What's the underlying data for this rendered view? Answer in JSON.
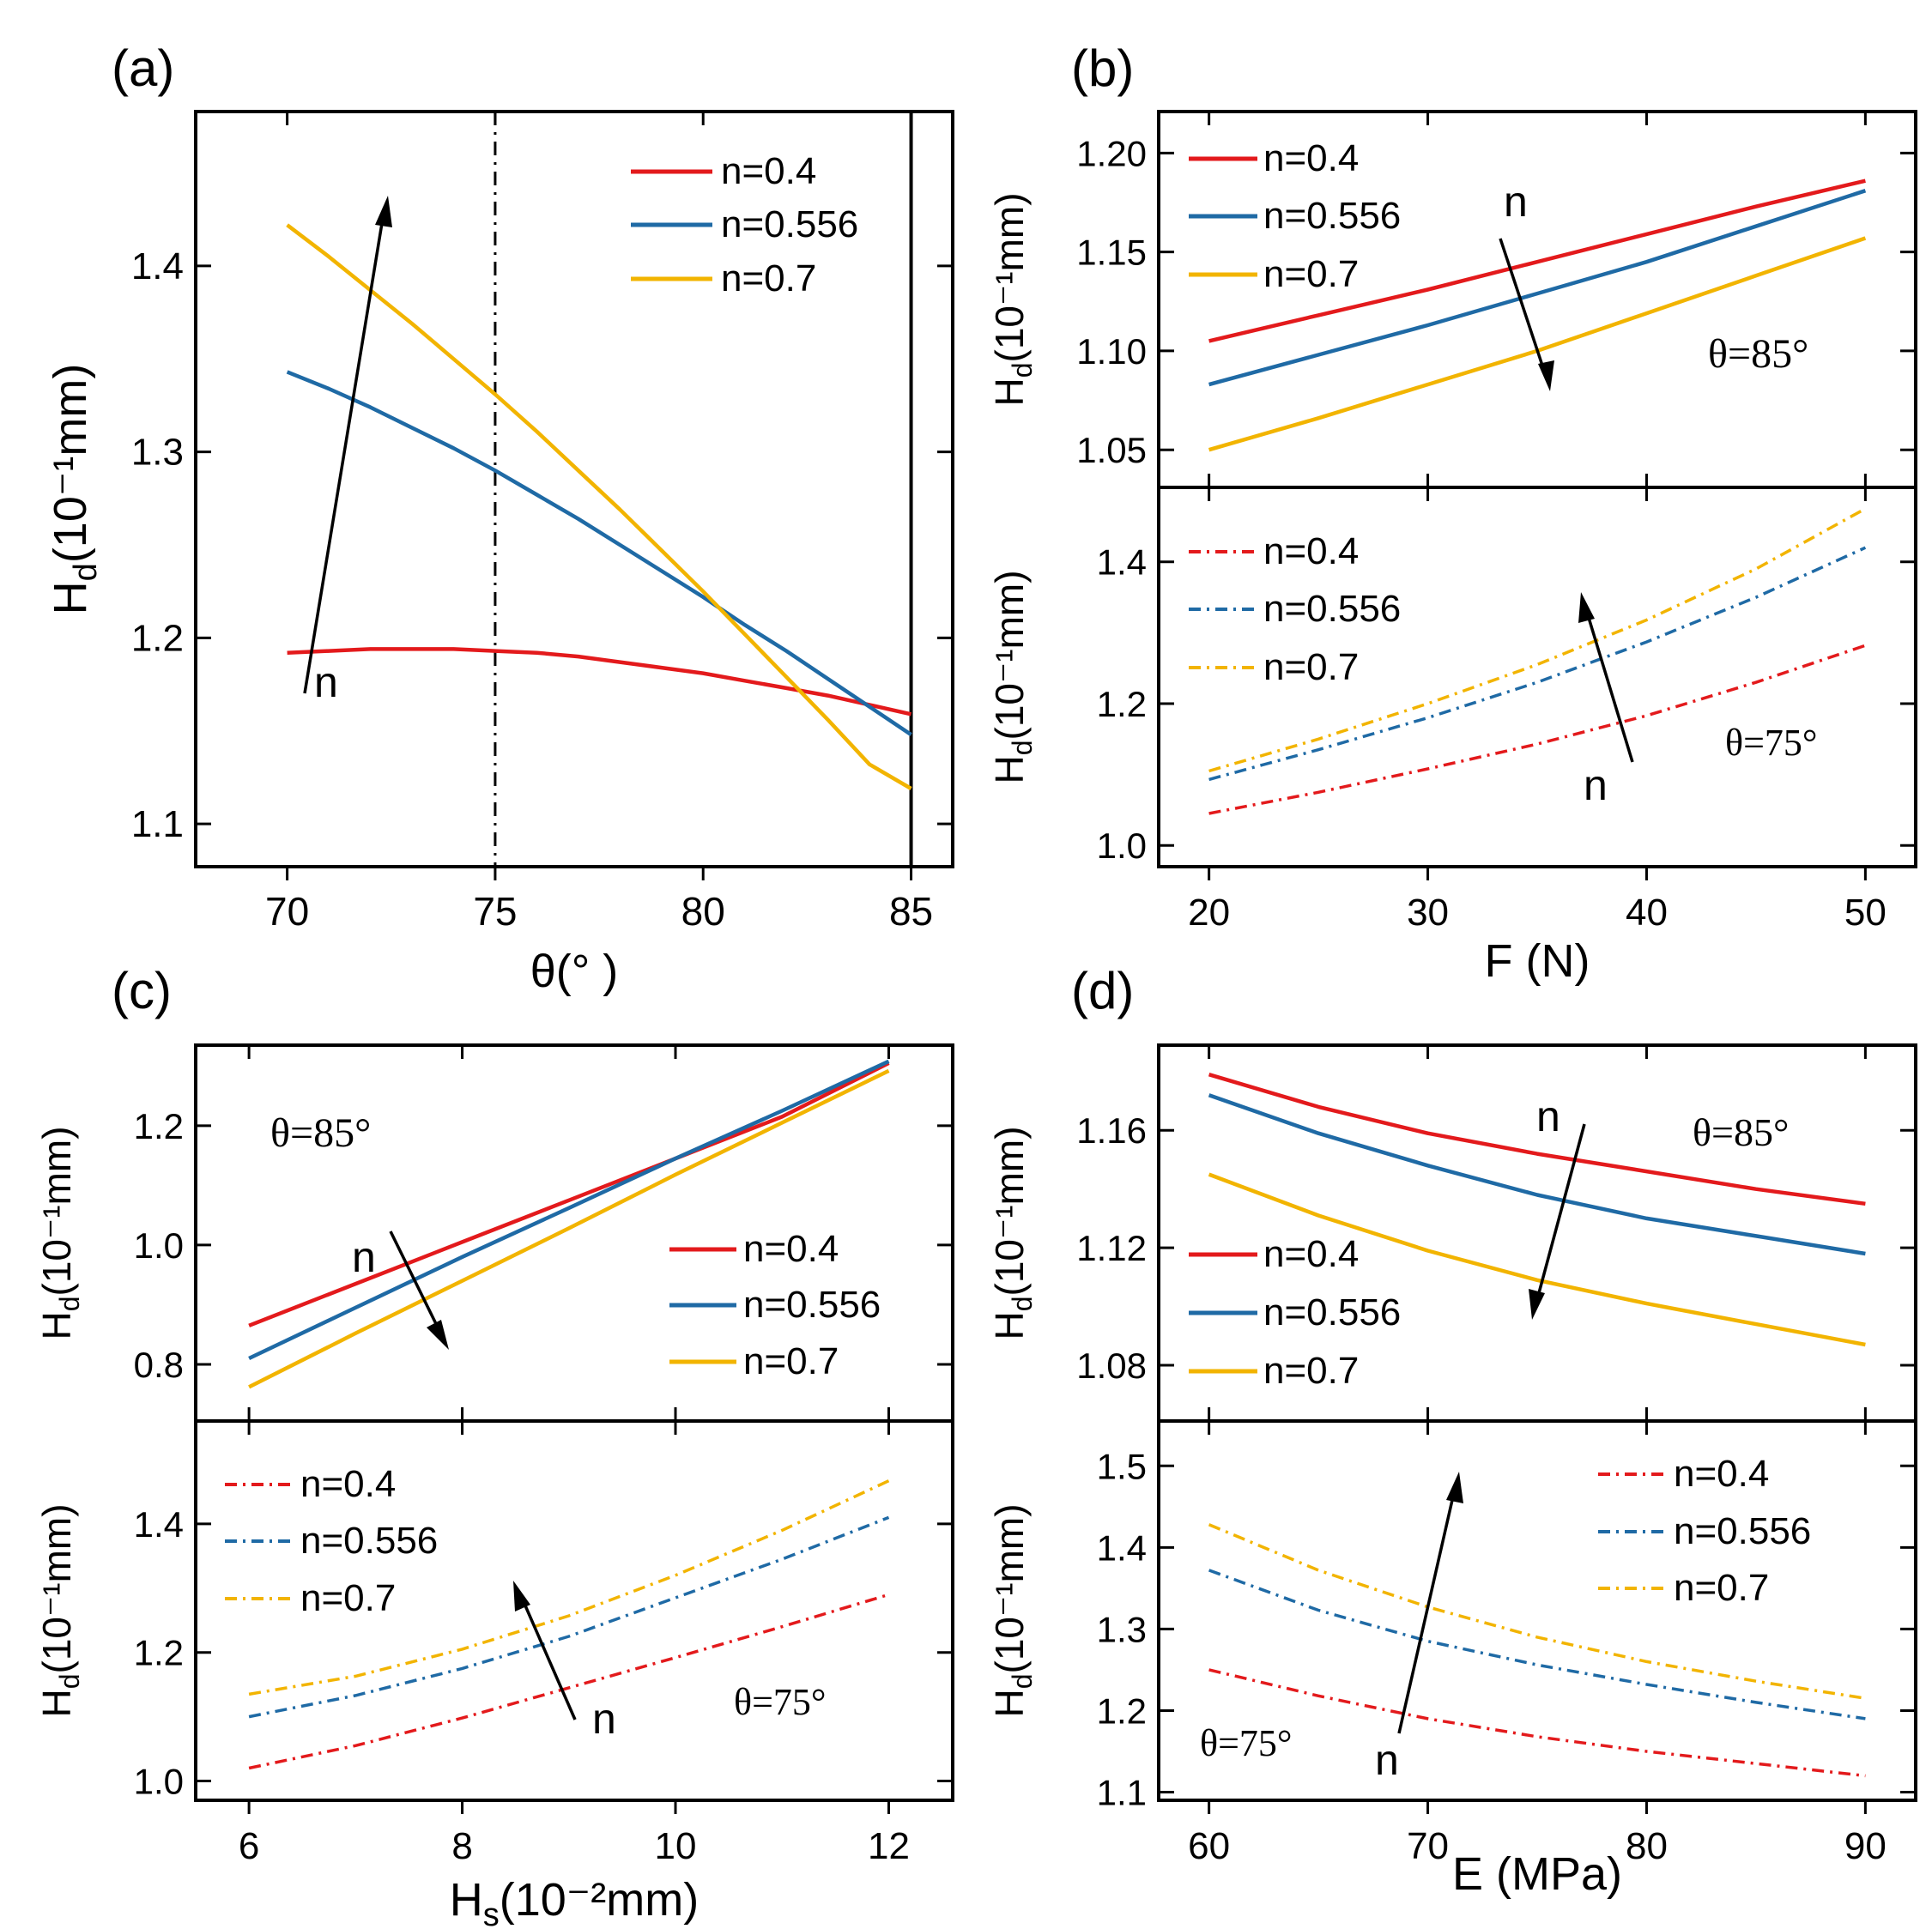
{
  "chart_data": [
    {
      "id": "a",
      "type": "line",
      "panel_label": "(a)",
      "xlabel": "θ(° )",
      "ylabel_main": "H",
      "ylabel_sub": "d",
      "ylabel_rest": "(10⁻¹mm)",
      "xlim": [
        67.8,
        86
      ],
      "ylim": [
        1.077,
        1.483
      ],
      "xticks": [
        70,
        75,
        80,
        85
      ],
      "xticklabels": [
        "70",
        "75",
        "80",
        "85"
      ],
      "yticks": [
        1.1,
        1.2,
        1.3,
        1.4
      ],
      "yticklabels": [
        "1.1",
        "1.2",
        "1.3",
        "1.4"
      ],
      "vlines": [
        {
          "x": 75,
          "style": "dashdot",
          "label": ""
        },
        {
          "x": 85,
          "style": "solid",
          "label": ""
        }
      ],
      "legend_position": "top-right",
      "annotations": [
        {
          "text": "n",
          "position": "arrow up"
        }
      ],
      "series": [
        {
          "name": "n=0.4",
          "color": "#e31a1c",
          "style": "solid",
          "x": [
            70,
            71,
            72,
            73,
            74,
            75,
            76,
            77,
            78,
            79,
            80,
            81,
            82,
            83,
            84,
            85
          ],
          "y": [
            1.192,
            1.193,
            1.194,
            1.194,
            1.194,
            1.193,
            1.192,
            1.19,
            1.187,
            1.184,
            1.181,
            1.177,
            1.173,
            1.169,
            1.164,
            1.159
          ]
        },
        {
          "name": "n=0.556",
          "color": "#1f6aa5",
          "style": "solid",
          "x": [
            70,
            71,
            72,
            73,
            74,
            75,
            76,
            77,
            78,
            79,
            80,
            81,
            82,
            83,
            84,
            85
          ],
          "y": [
            1.343,
            1.334,
            1.324,
            1.313,
            1.302,
            1.29,
            1.277,
            1.264,
            1.25,
            1.236,
            1.222,
            1.207,
            1.193,
            1.178,
            1.163,
            1.148
          ]
        },
        {
          "name": "n=0.7",
          "color": "#f2b400",
          "style": "solid",
          "x": [
            70,
            71,
            72,
            73,
            74,
            75,
            76,
            77,
            78,
            79,
            80,
            81,
            82,
            83,
            84,
            85
          ],
          "y": [
            1.422,
            1.405,
            1.387,
            1.369,
            1.35,
            1.331,
            1.311,
            1.29,
            1.269,
            1.247,
            1.225,
            1.202,
            1.179,
            1.156,
            1.132,
            1.119
          ]
        }
      ]
    },
    {
      "id": "b_top",
      "type": "line",
      "panel_label": "(b)",
      "ylabel_main": "H",
      "ylabel_sub": "d",
      "ylabel_rest": "(10⁻¹mm)",
      "xlim": [
        17.7,
        52.3
      ],
      "ylim": [
        1.031,
        1.221
      ],
      "yticks": [
        1.05,
        1.1,
        1.15,
        1.2
      ],
      "yticklabels": [
        "1.05",
        "1.10",
        "1.15",
        "1.20"
      ],
      "theta_label": "θ=85°",
      "legend_position": "top-left",
      "annotations": [
        {
          "text": "n",
          "position": "arrow down"
        }
      ],
      "series": [
        {
          "name": "n=0.4",
          "color": "#e31a1c",
          "style": "solid",
          "x": [
            20,
            25,
            30,
            35,
            40,
            45,
            50
          ],
          "y": [
            1.105,
            1.118,
            1.131,
            1.145,
            1.159,
            1.173,
            1.186
          ]
        },
        {
          "name": "n=0.556",
          "color": "#1f6aa5",
          "style": "solid",
          "x": [
            20,
            25,
            30,
            35,
            40,
            45,
            50
          ],
          "y": [
            1.083,
            1.098,
            1.113,
            1.129,
            1.145,
            1.163,
            1.181
          ]
        },
        {
          "name": "n=0.7",
          "color": "#f2b400",
          "style": "solid",
          "x": [
            20,
            25,
            30,
            35,
            40,
            45,
            50
          ],
          "y": [
            1.05,
            1.066,
            1.083,
            1.1,
            1.119,
            1.138,
            1.157
          ]
        }
      ]
    },
    {
      "id": "b_bottom",
      "type": "line",
      "xlabel": "F (N)",
      "ylabel_main": "H",
      "ylabel_sub": "d",
      "ylabel_rest": "(10⁻¹mm)",
      "xlim": [
        17.7,
        52.3
      ],
      "ylim": [
        0.97,
        1.505
      ],
      "xticks": [
        20,
        30,
        40,
        50
      ],
      "xticklabels": [
        "20",
        "30",
        "40",
        "50"
      ],
      "yticks": [
        1.0,
        1.2,
        1.4
      ],
      "yticklabels": [
        "1.0",
        "1.2",
        "1.4"
      ],
      "theta_label": "θ=75°",
      "legend_position": "top-left",
      "annotations": [
        {
          "text": "n",
          "position": "arrow up"
        }
      ],
      "series": [
        {
          "name": "n=0.4",
          "color": "#e31a1c",
          "style": "dashdot",
          "x": [
            20,
            25,
            30,
            35,
            40,
            45,
            50
          ],
          "y": [
            1.045,
            1.075,
            1.108,
            1.143,
            1.183,
            1.23,
            1.282
          ]
        },
        {
          "name": "n=0.556",
          "color": "#1f6aa5",
          "style": "dashdot",
          "x": [
            20,
            25,
            30,
            35,
            40,
            45,
            50
          ],
          "y": [
            1.093,
            1.135,
            1.18,
            1.23,
            1.287,
            1.35,
            1.42
          ]
        },
        {
          "name": "n=0.7",
          "color": "#f2b400",
          "style": "dashdot",
          "x": [
            20,
            25,
            30,
            35,
            40,
            45,
            50
          ],
          "y": [
            1.105,
            1.15,
            1.2,
            1.255,
            1.318,
            1.39,
            1.475
          ]
        }
      ]
    },
    {
      "id": "c_top",
      "type": "line",
      "panel_label": "(c)",
      "ylabel_main": "H",
      "ylabel_sub": "d",
      "ylabel_rest": "(10⁻¹mm)",
      "xlim": [
        5.5,
        12.6
      ],
      "ylim": [
        0.705,
        1.335
      ],
      "yticks": [
        0.8,
        1.0,
        1.2
      ],
      "yticklabels": [
        "0.8",
        "1.0",
        "1.2"
      ],
      "theta_label": "θ=85°",
      "legend_position": "right",
      "annotations": [
        {
          "text": "n",
          "position": "arrow down"
        }
      ],
      "series": [
        {
          "name": "n=0.4",
          "color": "#e31a1c",
          "style": "solid",
          "x": [
            6,
            7,
            8,
            9,
            10,
            11,
            12
          ],
          "y": [
            0.865,
            0.935,
            1.005,
            1.075,
            1.145,
            1.215,
            1.305
          ]
        },
        {
          "name": "n=0.556",
          "color": "#1f6aa5",
          "style": "solid",
          "x": [
            6,
            7,
            8,
            9,
            10,
            11,
            12
          ],
          "y": [
            0.81,
            0.895,
            0.98,
            1.062,
            1.145,
            1.225,
            1.308
          ]
        },
        {
          "name": "n=0.7",
          "color": "#f2b400",
          "style": "solid",
          "x": [
            6,
            7,
            8,
            9,
            10,
            11,
            12
          ],
          "y": [
            0.762,
            0.852,
            0.94,
            1.028,
            1.118,
            1.205,
            1.292
          ]
        }
      ]
    },
    {
      "id": "c_bottom",
      "type": "line",
      "xlabel_main": "H",
      "xlabel_sub": "s",
      "xlabel_rest": "(10⁻²mm)",
      "ylabel_main": "H",
      "ylabel_sub": "d",
      "ylabel_rest": "(10⁻¹mm)",
      "xlim": [
        5.5,
        12.6
      ],
      "ylim": [
        0.97,
        1.56
      ],
      "xticks": [
        6,
        8,
        10,
        12
      ],
      "xticklabels": [
        "6",
        "8",
        "10",
        "12"
      ],
      "yticks": [
        1.0,
        1.2,
        1.4
      ],
      "yticklabels": [
        "1.0",
        "1.2",
        "1.4"
      ],
      "theta_label": "θ=75°",
      "legend_position": "top-left",
      "annotations": [
        {
          "text": "n",
          "position": "arrow up"
        }
      ],
      "series": [
        {
          "name": "n=0.4",
          "color": "#e31a1c",
          "style": "dashdot",
          "x": [
            6,
            7,
            8,
            9,
            10,
            11,
            12
          ],
          "y": [
            1.02,
            1.055,
            1.098,
            1.145,
            1.192,
            1.24,
            1.29
          ]
        },
        {
          "name": "n=0.556",
          "color": "#1f6aa5",
          "style": "dashdot",
          "x": [
            6,
            7,
            8,
            9,
            10,
            11,
            12
          ],
          "y": [
            1.1,
            1.133,
            1.175,
            1.225,
            1.285,
            1.345,
            1.41
          ]
        },
        {
          "name": "n=0.7",
          "color": "#f2b400",
          "style": "dashdot",
          "x": [
            6,
            7,
            8,
            9,
            10,
            11,
            12
          ],
          "y": [
            1.135,
            1.163,
            1.205,
            1.257,
            1.32,
            1.39,
            1.467
          ]
        }
      ]
    },
    {
      "id": "d_top",
      "type": "line",
      "panel_label": "(d)",
      "ylabel_main": "H",
      "ylabel_sub": "d",
      "ylabel_rest": "(10⁻¹mm)",
      "xlim": [
        57.7,
        92.3
      ],
      "ylim": [
        1.061,
        1.189
      ],
      "yticks": [
        1.08,
        1.12,
        1.16
      ],
      "yticklabels": [
        "1.08",
        "1.12",
        "1.16"
      ],
      "theta_label": "θ=85°",
      "legend_position": "bottom-left",
      "annotations": [
        {
          "text": "n",
          "position": "arrow down"
        }
      ],
      "series": [
        {
          "name": "n=0.4",
          "color": "#e31a1c",
          "style": "solid",
          "x": [
            60,
            65,
            70,
            75,
            80,
            85,
            90
          ],
          "y": [
            1.179,
            1.168,
            1.159,
            1.152,
            1.146,
            1.14,
            1.135
          ]
        },
        {
          "name": "n=0.556",
          "color": "#1f6aa5",
          "style": "solid",
          "x": [
            60,
            65,
            70,
            75,
            80,
            85,
            90
          ],
          "y": [
            1.172,
            1.159,
            1.148,
            1.138,
            1.13,
            1.124,
            1.118
          ]
        },
        {
          "name": "n=0.7",
          "color": "#f2b400",
          "style": "solid",
          "x": [
            60,
            65,
            70,
            75,
            80,
            85,
            90
          ],
          "y": [
            1.145,
            1.131,
            1.119,
            1.109,
            1.101,
            1.094,
            1.087
          ]
        }
      ]
    },
    {
      "id": "d_bottom",
      "type": "line",
      "xlabel": "E (MPa)",
      "ylabel_main": "H",
      "ylabel_sub": "d",
      "ylabel_rest": "(10⁻¹mm)",
      "xlim": [
        57.7,
        92.3
      ],
      "ylim": [
        1.09,
        1.555
      ],
      "xticks": [
        60,
        70,
        80,
        90
      ],
      "xticklabels": [
        "60",
        "70",
        "80",
        "90"
      ],
      "yticks": [
        1.1,
        1.2,
        1.3,
        1.4,
        1.5
      ],
      "yticklabels": [
        "1.1",
        "1.2",
        "1.3",
        "1.4",
        "1.5"
      ],
      "theta_label": "θ=75°",
      "legend_position": "top-right",
      "annotations": [
        {
          "text": "n",
          "position": "arrow up"
        }
      ],
      "series": [
        {
          "name": "n=0.4",
          "color": "#e31a1c",
          "style": "dashdot",
          "x": [
            60,
            65,
            70,
            75,
            80,
            85,
            90
          ],
          "y": [
            1.25,
            1.218,
            1.19,
            1.168,
            1.15,
            1.135,
            1.12
          ]
        },
        {
          "name": "n=0.556",
          "color": "#1f6aa5",
          "style": "dashdot",
          "x": [
            60,
            65,
            70,
            75,
            80,
            85,
            90
          ],
          "y": [
            1.372,
            1.323,
            1.285,
            1.256,
            1.232,
            1.21,
            1.19
          ]
        },
        {
          "name": "n=0.7",
          "color": "#f2b400",
          "style": "dashdot",
          "x": [
            60,
            65,
            70,
            75,
            80,
            85,
            90
          ],
          "y": [
            1.428,
            1.372,
            1.327,
            1.29,
            1.26,
            1.236,
            1.215
          ]
        }
      ]
    }
  ]
}
